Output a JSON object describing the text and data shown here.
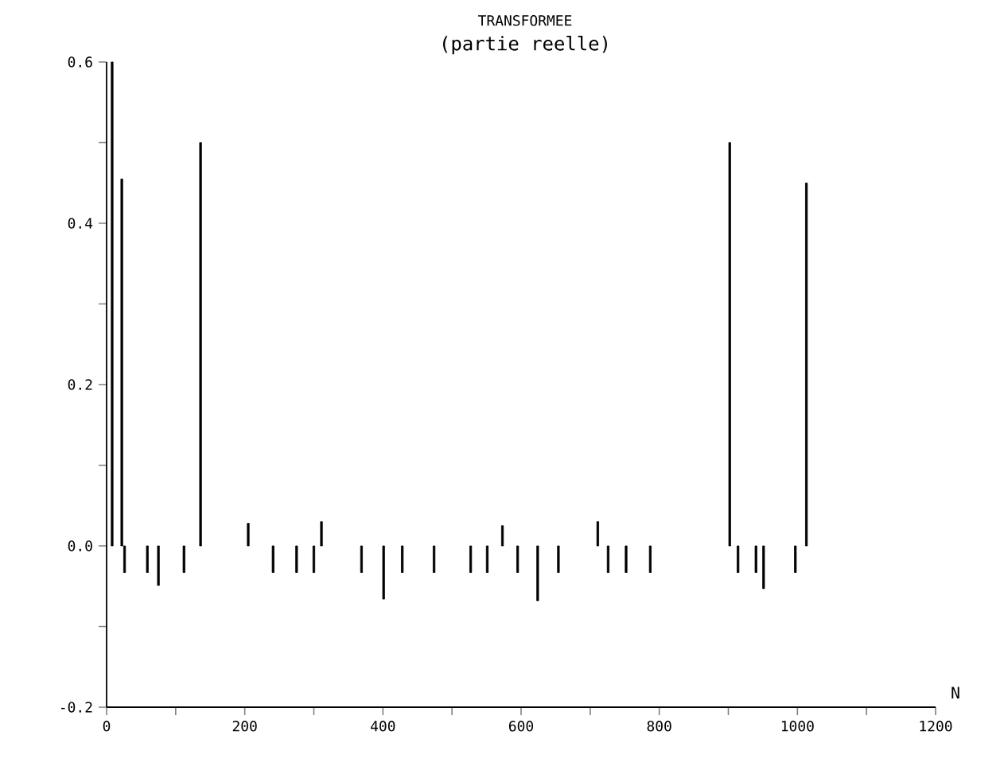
{
  "chart_data": {
    "type": "bar",
    "title": "TRANSFORMEE",
    "subtitle": "(partie reelle)",
    "xlabel": "N",
    "x": [
      8,
      22,
      26,
      59,
      75,
      112,
      136,
      205,
      241,
      275,
      300,
      311,
      369,
      401,
      428,
      474,
      527,
      551,
      573,
      595,
      624,
      654,
      711,
      726,
      752,
      787,
      902,
      914,
      940,
      951,
      997,
      1013
    ],
    "values": [
      0.6,
      0.455,
      -0.033,
      -0.033,
      -0.049,
      -0.033,
      0.5,
      0.028,
      -0.033,
      -0.033,
      -0.033,
      0.03,
      -0.033,
      -0.066,
      -0.033,
      -0.033,
      -0.033,
      -0.033,
      0.025,
      -0.033,
      -0.068,
      -0.033,
      0.03,
      -0.033,
      -0.033,
      -0.033,
      0.5,
      -0.033,
      -0.033,
      -0.053,
      -0.033,
      0.45
    ],
    "color": "#000000",
    "xlim": [
      0,
      1200
    ],
    "ylim": [
      -0.2,
      0.6
    ],
    "xticks": [
      0,
      {
        "value": 100,
        "label": null
      },
      200,
      {
        "value": 300,
        "label": null
      },
      400,
      {
        "value": 500,
        "label": null
      },
      600,
      {
        "value": 700,
        "label": null
      },
      800,
      {
        "value": 900,
        "label": null
      },
      1000,
      {
        "value": 1100,
        "label": null
      },
      1200
    ],
    "yticks": [
      {
        "value": -0.2,
        "label": "-0.2"
      },
      {
        "value": -0.1,
        "label": null
      },
      {
        "value": 0,
        "label": "0.0"
      },
      {
        "value": 0.1,
        "label": null
      },
      {
        "value": 0.2,
        "label": "0.2"
      },
      {
        "value": 0.3,
        "label": null
      },
      {
        "value": 0.4,
        "label": "0.4"
      },
      {
        "value": 0.5,
        "label": null
      },
      {
        "value": 0.6,
        "label": "0.6"
      }
    ],
    "marker": "none"
  }
}
